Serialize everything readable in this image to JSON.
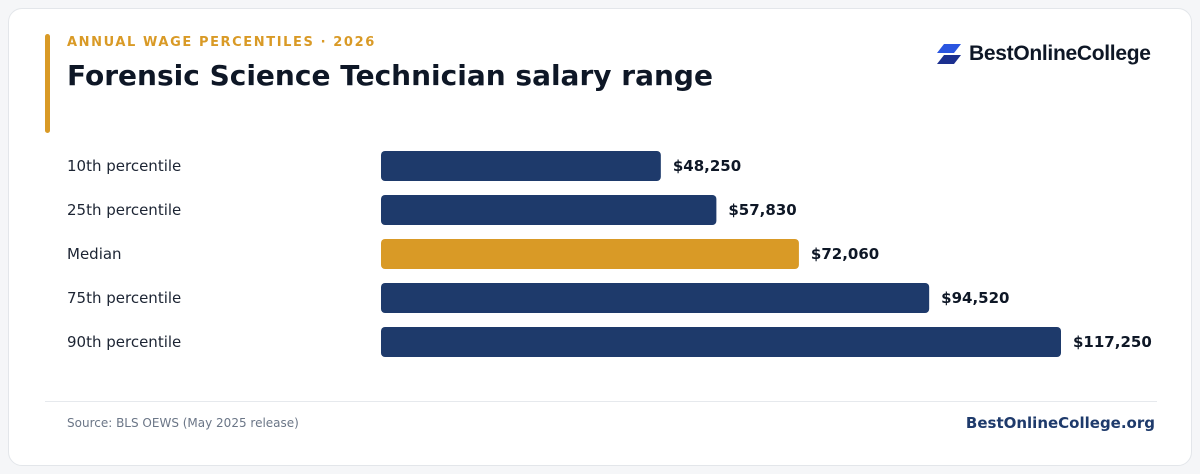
{
  "header": {
    "eyebrow": "ANNUAL WAGE PERCENTILES · 2026",
    "title": "Forensic Science Technician salary range"
  },
  "logo": {
    "text": "BestOnlineCollege",
    "icon": "stacked-parallelogram-logo-icon"
  },
  "footer": {
    "source": "Source: BLS OEWS (May 2025 release)",
    "site": "BestOnlineCollege.org"
  },
  "colors": {
    "accent": "#d99a26",
    "bar": "#1e3a6b",
    "highlight": "#d99a26",
    "logo_primary": "#2a55e0",
    "logo_secondary": "#1b2f8f"
  },
  "chart_data": {
    "type": "bar",
    "orientation": "horizontal",
    "categories": [
      "10th percentile",
      "25th percentile",
      "Median",
      "75th percentile",
      "90th percentile"
    ],
    "values": [
      48250,
      57830,
      72060,
      94520,
      117250
    ],
    "value_labels": [
      "$48,250",
      "$57,830",
      "$72,060",
      "$94,520",
      "$117,250"
    ],
    "highlight_category": "Median",
    "xlim": [
      0,
      117250
    ],
    "grid": false,
    "legend": "none"
  }
}
